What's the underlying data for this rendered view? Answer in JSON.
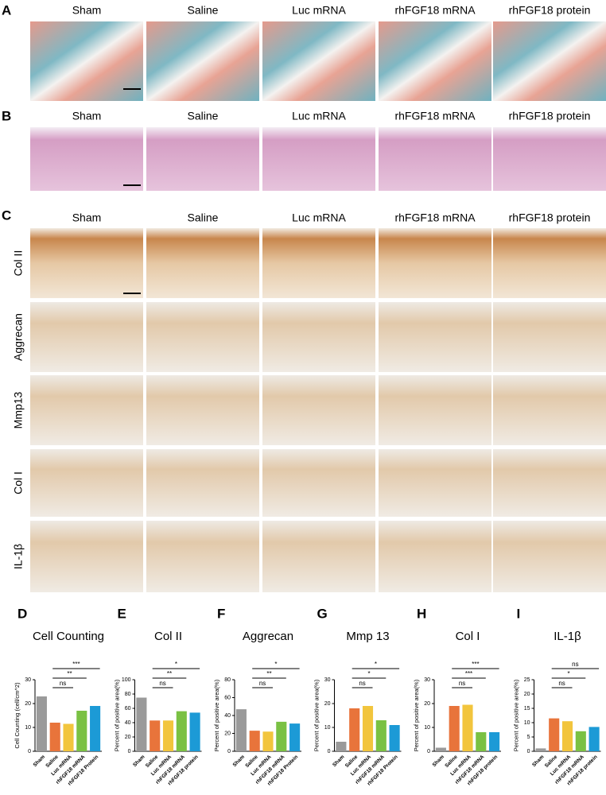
{
  "image_panels": [
    {
      "letter": "A",
      "columns": [
        "Sham",
        "Saline",
        "Luc mRNA",
        "rhFGF18 mRNA",
        "rhFGF18 protein"
      ]
    },
    {
      "letter": "B",
      "columns": [
        "Sham",
        "Saline",
        "Luc mRNA",
        "rhFGF18 mRNA",
        "rhFGF18 protein"
      ]
    },
    {
      "letter": "C",
      "columns": [
        "Sham",
        "Saline",
        "Luc mRNA",
        "rhFGF18 mRNA",
        "rhFGF18 protein"
      ],
      "rows": [
        "Col II",
        "Aggrecan",
        "Mmp13",
        "Col I",
        "IL-1β"
      ]
    }
  ],
  "chart_data": [
    {
      "type": "bar",
      "letter": "D",
      "title": "Cell Counting",
      "ylabel": "Cell Counting (cell/cm^2)",
      "categories": [
        "Sham",
        "Saline",
        "Luc mRNA",
        "rhFGF18 mRNA",
        "rhFGF18 Protein"
      ],
      "values": [
        23,
        12,
        11.5,
        17,
        19
      ],
      "colors": [
        "#9a9a9a",
        "#e8743b",
        "#f2c53d",
        "#7ac143",
        "#1c9ad6"
      ],
      "ylim": [
        0,
        30
      ],
      "yticks": [
        0,
        10,
        20,
        30
      ],
      "significance": [
        {
          "groups": [
            1,
            2
          ],
          "label": "ns"
        },
        {
          "groups": [
            1,
            3
          ],
          "label": "**"
        },
        {
          "groups": [
            1,
            4
          ],
          "label": "***"
        }
      ]
    },
    {
      "type": "bar",
      "letter": "E",
      "title": "Col II",
      "ylabel": "Percent of positive area(%)",
      "categories": [
        "Sham",
        "Saline",
        "Luc mRNA",
        "rhFGF18 mRNA",
        "rhFGF18 protein"
      ],
      "values": [
        75,
        43,
        43,
        56,
        54
      ],
      "colors": [
        "#9a9a9a",
        "#e8743b",
        "#f2c53d",
        "#7ac143",
        "#1c9ad6"
      ],
      "ylim": [
        0,
        100
      ],
      "yticks": [
        0,
        20,
        40,
        60,
        80,
        100
      ],
      "significance": [
        {
          "groups": [
            1,
            2
          ],
          "label": "ns"
        },
        {
          "groups": [
            1,
            3
          ],
          "label": "**"
        },
        {
          "groups": [
            1,
            4
          ],
          "label": "*"
        }
      ]
    },
    {
      "type": "bar",
      "letter": "F",
      "title": "Aggrecan",
      "ylabel": "Percent of positive area(%)",
      "categories": [
        "Sham",
        "Saline",
        "Luc mRNA",
        "rhFGF18 mRNA",
        "rhFGF18 Protein"
      ],
      "values": [
        47,
        23,
        22,
        33,
        31
      ],
      "colors": [
        "#9a9a9a",
        "#e8743b",
        "#f2c53d",
        "#7ac143",
        "#1c9ad6"
      ],
      "ylim": [
        0,
        80
      ],
      "yticks": [
        0,
        20,
        40,
        60,
        80
      ],
      "significance": [
        {
          "groups": [
            1,
            2
          ],
          "label": "ns"
        },
        {
          "groups": [
            1,
            3
          ],
          "label": "**"
        },
        {
          "groups": [
            1,
            4
          ],
          "label": "*"
        }
      ]
    },
    {
      "type": "bar",
      "letter": "G",
      "title": "Mmp 13",
      "ylabel": "Percent of positive area(%)",
      "categories": [
        "Sham",
        "Saline",
        "Luc mRNA",
        "rhFGF18 mRNA",
        "rhFGF18 Protein"
      ],
      "values": [
        4,
        18,
        19,
        13,
        11
      ],
      "colors": [
        "#9a9a9a",
        "#e8743b",
        "#f2c53d",
        "#7ac143",
        "#1c9ad6"
      ],
      "ylim": [
        0,
        30
      ],
      "yticks": [
        0,
        10,
        20,
        30
      ],
      "significance": [
        {
          "groups": [
            1,
            2
          ],
          "label": "ns"
        },
        {
          "groups": [
            1,
            3
          ],
          "label": "*"
        },
        {
          "groups": [
            1,
            4
          ],
          "label": "*"
        }
      ]
    },
    {
      "type": "bar",
      "letter": "H",
      "title": "Col I",
      "ylabel": "Percent of positive area(%)",
      "categories": [
        "Sham",
        "Saline",
        "Luc mRNA",
        "rhFGF18 mRNA",
        "rhFGF18 protein"
      ],
      "values": [
        1.5,
        19,
        19.5,
        8,
        8
      ],
      "colors": [
        "#9a9a9a",
        "#e8743b",
        "#f2c53d",
        "#7ac143",
        "#1c9ad6"
      ],
      "ylim": [
        0,
        30
      ],
      "yticks": [
        0,
        10,
        20,
        30
      ],
      "significance": [
        {
          "groups": [
            1,
            2
          ],
          "label": "ns"
        },
        {
          "groups": [
            1,
            3
          ],
          "label": "***"
        },
        {
          "groups": [
            1,
            4
          ],
          "label": "***"
        }
      ]
    },
    {
      "type": "bar",
      "letter": "I",
      "title": "IL-1β",
      "ylabel": "Percent of positive area(%)",
      "categories": [
        "Sham",
        "Saline",
        "Luc mRNA",
        "rhFGF18 mRNA",
        "rhFGF18 protein"
      ],
      "values": [
        1,
        11.5,
        10.5,
        7,
        8.5
      ],
      "colors": [
        "#9a9a9a",
        "#e8743b",
        "#f2c53d",
        "#7ac143",
        "#1c9ad6"
      ],
      "ylim": [
        0,
        25
      ],
      "yticks": [
        0,
        5,
        10,
        15,
        20,
        25
      ],
      "significance": [
        {
          "groups": [
            1,
            2
          ],
          "label": "ns"
        },
        {
          "groups": [
            1,
            3
          ],
          "label": "*"
        },
        {
          "groups": [
            1,
            4
          ],
          "label": "ns"
        }
      ]
    }
  ]
}
